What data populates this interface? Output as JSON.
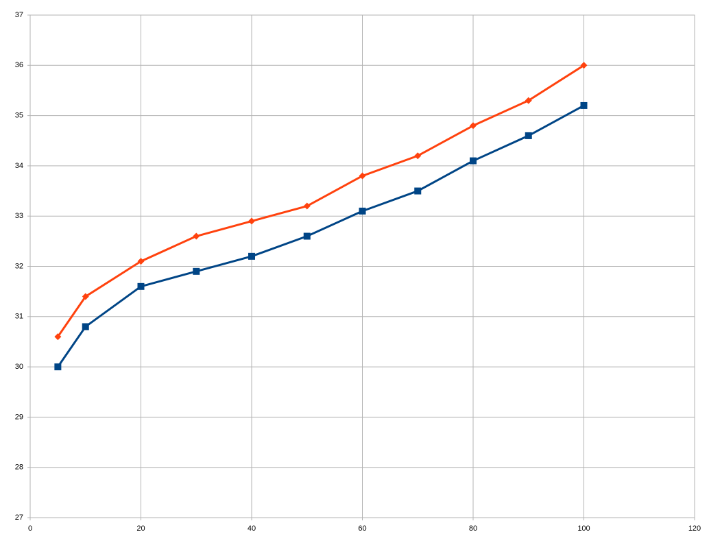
{
  "chart_data": {
    "type": "line",
    "x": [
      5,
      10,
      20,
      30,
      40,
      50,
      60,
      70,
      80,
      90,
      100
    ],
    "series": [
      {
        "color": "#ff420e",
        "marker": "diamond",
        "values": [
          30.6,
          31.4,
          32.1,
          32.6,
          32.9,
          33.2,
          33.8,
          34.2,
          34.8,
          35.3,
          36.0
        ]
      },
      {
        "color": "#004586",
        "marker": "square",
        "values": [
          30.0,
          30.8,
          31.6,
          31.9,
          32.2,
          32.6,
          33.1,
          33.5,
          34.1,
          34.6,
          35.2
        ]
      }
    ],
    "xlim": [
      0,
      120
    ],
    "xticks": [
      0,
      20,
      40,
      60,
      80,
      100,
      120
    ],
    "ylim": [
      27,
      37
    ],
    "yticks": [
      27,
      28,
      29,
      30,
      31,
      32,
      33,
      34,
      35,
      36,
      37
    ],
    "grid": true
  }
}
